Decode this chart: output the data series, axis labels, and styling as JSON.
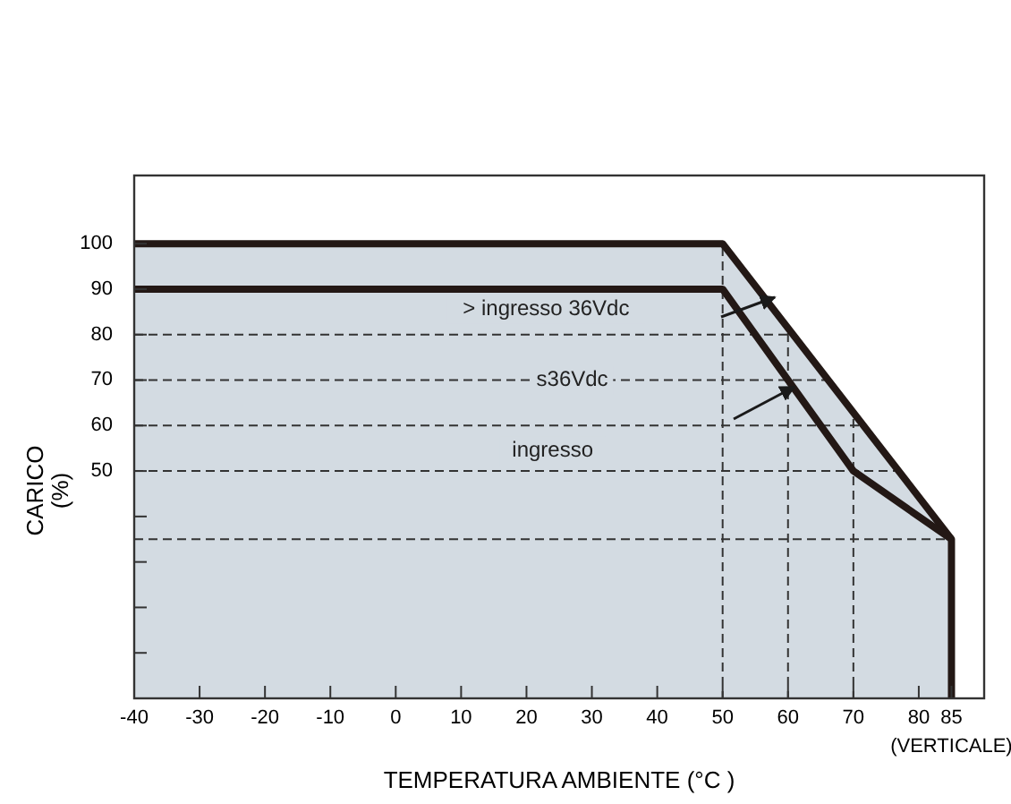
{
  "chart_data": {
    "type": "area",
    "xlabel": "TEMPERATURA AMBIENTE (°C )",
    "ylabel": "CARICO (%)",
    "xlim": [
      -40,
      90
    ],
    "xticks": [
      -40,
      -30,
      -20,
      -10,
      0,
      10,
      20,
      30,
      40,
      50,
      60,
      70,
      80,
      85
    ],
    "ylim": [
      0,
      115
    ],
    "yticks": [
      {
        "value": 10,
        "label": null
      },
      {
        "value": 20,
        "label": null
      },
      {
        "value": 30,
        "label": null
      },
      {
        "value": 40,
        "label": null
      },
      50,
      60,
      70,
      80,
      90,
      100
    ],
    "series": [
      {
        "color": "#231815",
        "x": [
          -40,
          50,
          85,
          85
        ],
        "values": [
          100,
          100,
          35,
          0
        ]
      },
      {
        "type": "line",
        "color": "#231815",
        "x": [
          -40,
          50,
          70,
          85
        ],
        "values": [
          90,
          90,
          50,
          35
        ]
      }
    ],
    "ref_lines": [
      {
        "axis": "y",
        "value": 80,
        "line_style": "dashed"
      },
      {
        "axis": "y",
        "value": 70,
        "line_style": "dashed"
      },
      {
        "axis": "y",
        "value": 60,
        "line_style": "dashed"
      },
      {
        "axis": "y",
        "value": 50,
        "line_style": "dashed"
      },
      {
        "axis": "y",
        "value": 35,
        "line_style": "dashed"
      },
      {
        "axis": "x",
        "value": 50,
        "line_style": "dashed"
      },
      {
        "axis": "x",
        "value": 60,
        "line_style": "dashed"
      },
      {
        "axis": "x",
        "value": 70,
        "line_style": "dashed"
      }
    ],
    "annotations": [
      "> ingresso 36Vdc",
      "s36Vdc",
      "ingresso",
      "(VERTICALE)"
    ],
    "grid": false
  }
}
